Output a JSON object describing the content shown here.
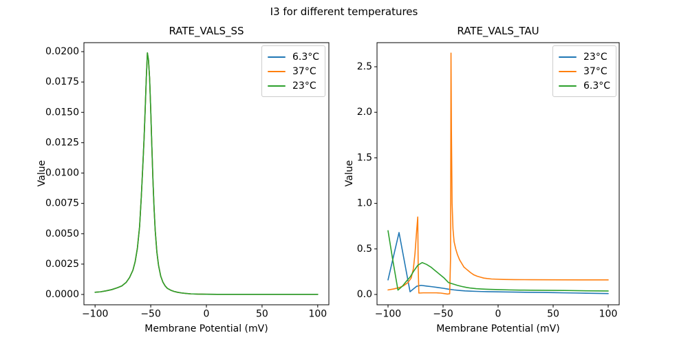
{
  "figure": {
    "suptitle": "I3 for different temperatures"
  },
  "colors": {
    "blue": "#1f77b4",
    "orange": "#ff7f0e",
    "green": "#2ca02c",
    "axis": "#000000",
    "legend_border": "#cccccc"
  },
  "chart_data": [
    {
      "type": "line",
      "title": "RATE_VALS_SS",
      "xlabel": "Membrane Potential (mV)",
      "ylabel": "Value",
      "xlim": [
        -110,
        110
      ],
      "ylim": [
        -0.00085,
        0.02074
      ],
      "xticks": [
        -100,
        -50,
        0,
        50,
        100
      ],
      "xtick_labels": [
        "−100",
        "−50",
        "0",
        "50",
        "100"
      ],
      "yticks": [
        0.0,
        0.0025,
        0.005,
        0.0075,
        0.01,
        0.0125,
        0.015,
        0.0175,
        0.02
      ],
      "ytick_labels": [
        "0.0000",
        "0.0025",
        "0.0050",
        "0.0075",
        "0.0100",
        "0.0125",
        "0.0150",
        "0.0175",
        "0.0200"
      ],
      "grid": false,
      "legend_position": "upper right",
      "legend": [
        "6.3°C",
        "37°C",
        "23°C"
      ],
      "series": [
        {
          "name": "6.3°C",
          "color": "#1f77b4",
          "x": [
            -100,
            -95,
            -90,
            -85,
            -80,
            -76,
            -72,
            -69,
            -66,
            -64,
            -62,
            -60,
            -58.5,
            -57,
            -56,
            -55,
            -54,
            -53,
            -52,
            -51,
            -50,
            -49,
            -48,
            -47,
            -46,
            -44.5,
            -43,
            -41,
            -39,
            -37,
            -35,
            -32,
            -29,
            -26,
            -22,
            -18,
            -14,
            -8,
            0,
            10,
            25,
            50,
            75,
            100
          ],
          "y": [
            0.00018,
            0.00022,
            0.0003,
            0.0004,
            0.00055,
            0.0007,
            0.001,
            0.0014,
            0.002,
            0.0027,
            0.0038,
            0.0056,
            0.008,
            0.0108,
            0.0128,
            0.0152,
            0.0178,
            0.0199,
            0.0193,
            0.0178,
            0.0152,
            0.0122,
            0.0094,
            0.0071,
            0.0053,
            0.0035,
            0.0024,
            0.0015,
            0.001,
            0.0007,
            0.0005,
            0.00035,
            0.00025,
            0.00018,
            0.00012,
            8e-05,
            5e-05,
            3e-05,
            2e-05,
            1e-05,
            1e-05,
            1e-05,
            1e-05,
            1e-05
          ]
        },
        {
          "name": "37°C",
          "color": "#ff7f0e",
          "x": [
            -100,
            -95,
            -90,
            -85,
            -80,
            -76,
            -72,
            -69,
            -66,
            -64,
            -62,
            -60,
            -58.5,
            -57,
            -56,
            -55,
            -54,
            -53,
            -52,
            -51,
            -50,
            -49,
            -48,
            -47,
            -46,
            -44.5,
            -43,
            -41,
            -39,
            -37,
            -35,
            -32,
            -29,
            -26,
            -22,
            -18,
            -14,
            -8,
            0,
            10,
            25,
            50,
            75,
            100
          ],
          "y": [
            0.00018,
            0.00022,
            0.0003,
            0.0004,
            0.00055,
            0.0007,
            0.001,
            0.0014,
            0.002,
            0.0027,
            0.0038,
            0.0056,
            0.008,
            0.0108,
            0.0128,
            0.0152,
            0.0178,
            0.0199,
            0.0193,
            0.0178,
            0.0152,
            0.0122,
            0.0094,
            0.0071,
            0.0053,
            0.0035,
            0.0024,
            0.0015,
            0.001,
            0.0007,
            0.0005,
            0.00035,
            0.00025,
            0.00018,
            0.00012,
            8e-05,
            5e-05,
            3e-05,
            2e-05,
            1e-05,
            1e-05,
            1e-05,
            1e-05,
            1e-05
          ]
        },
        {
          "name": "23°C",
          "color": "#2ca02c",
          "x": [
            -100,
            -95,
            -90,
            -85,
            -80,
            -76,
            -72,
            -69,
            -66,
            -64,
            -62,
            -60,
            -58.5,
            -57,
            -56,
            -55,
            -54,
            -53,
            -52,
            -51,
            -50,
            -49,
            -48,
            -47,
            -46,
            -44.5,
            -43,
            -41,
            -39,
            -37,
            -35,
            -32,
            -29,
            -26,
            -22,
            -18,
            -14,
            -8,
            0,
            10,
            25,
            50,
            75,
            100
          ],
          "y": [
            0.00018,
            0.00022,
            0.0003,
            0.0004,
            0.00055,
            0.0007,
            0.001,
            0.0014,
            0.002,
            0.0027,
            0.0038,
            0.0056,
            0.008,
            0.0108,
            0.0128,
            0.0152,
            0.0178,
            0.0199,
            0.0193,
            0.0178,
            0.0152,
            0.0122,
            0.0094,
            0.0071,
            0.0053,
            0.0035,
            0.0024,
            0.0015,
            0.001,
            0.0007,
            0.0005,
            0.00035,
            0.00025,
            0.00018,
            0.00012,
            8e-05,
            5e-05,
            3e-05,
            2e-05,
            1e-05,
            1e-05,
            1e-05,
            1e-05,
            1e-05
          ]
        }
      ]
    },
    {
      "type": "line",
      "title": "RATE_VALS_TAU",
      "xlabel": "Membrane Potential (mV)",
      "ylabel": "Value",
      "xlim": [
        -110,
        110
      ],
      "ylim": [
        -0.1133,
        2.7645
      ],
      "xticks": [
        -100,
        -50,
        0,
        50,
        100
      ],
      "xtick_labels": [
        "−100",
        "−50",
        "0",
        "50",
        "100"
      ],
      "yticks": [
        0.0,
        0.5,
        1.0,
        1.5,
        2.0,
        2.5
      ],
      "ytick_labels": [
        "0.0",
        "0.5",
        "1.0",
        "1.5",
        "2.0",
        "2.5"
      ],
      "grid": false,
      "legend_position": "upper right",
      "legend": [
        "23°C",
        "37°C",
        "6.3°C"
      ],
      "series": [
        {
          "name": "23°C",
          "color": "#1f77b4",
          "x": [
            -100,
            -90,
            -80,
            -74,
            -70,
            -65,
            -60,
            -55,
            -50,
            -45,
            -40,
            -35,
            -30,
            -25,
            -20,
            -15,
            -10,
            -5,
            0,
            10,
            20,
            30,
            40,
            50,
            60,
            70,
            80,
            90,
            100
          ],
          "y": [
            0.16,
            0.68,
            0.03,
            0.09,
            0.1,
            0.092,
            0.085,
            0.077,
            0.068,
            0.058,
            0.05,
            0.044,
            0.039,
            0.036,
            0.034,
            0.032,
            0.031,
            0.03,
            0.029,
            0.027,
            0.025,
            0.023,
            0.022,
            0.02,
            0.018,
            0.016,
            0.014,
            0.012,
            0.01
          ]
        },
        {
          "name": "37°C",
          "color": "#ff7f0e",
          "x": [
            -100,
            -95,
            -90,
            -86,
            -82,
            -79,
            -77,
            -75.5,
            -74,
            -73,
            -72.6,
            -72,
            -68,
            -64,
            -60,
            -56,
            -52,
            -48,
            -46,
            -44,
            -43.2,
            -42.8,
            -42.4,
            -41.8,
            -41,
            -40,
            -38.5,
            -37,
            -35,
            -33,
            -31,
            -29,
            -27,
            -25,
            -22,
            -19,
            -16,
            -13,
            -10,
            -6,
            -2,
            5,
            15,
            30,
            50,
            75,
            100
          ],
          "y": [
            0.05,
            0.06,
            0.075,
            0.095,
            0.13,
            0.18,
            0.28,
            0.45,
            0.7,
            0.85,
            0.3,
            0.015,
            0.018,
            0.018,
            0.018,
            0.018,
            0.015,
            0.008,
            0.004,
            0.008,
            0.4,
            2.65,
            1.8,
            1.0,
            0.72,
            0.58,
            0.5,
            0.44,
            0.38,
            0.34,
            0.3,
            0.28,
            0.26,
            0.24,
            0.215,
            0.2,
            0.19,
            0.18,
            0.175,
            0.17,
            0.168,
            0.165,
            0.163,
            0.162,
            0.161,
            0.16,
            0.16
          ]
        },
        {
          "name": "6.3°C",
          "color": "#2ca02c",
          "x": [
            -100,
            -96,
            -91,
            -87,
            -83,
            -80,
            -77,
            -73,
            -69,
            -65,
            -61,
            -57,
            -53,
            -49,
            -45,
            -41,
            -37,
            -33,
            -29,
            -25,
            -20,
            -15,
            -10,
            -5,
            0,
            10,
            20,
            30,
            40,
            50,
            60,
            70,
            80,
            90,
            100
          ],
          "y": [
            0.7,
            0.4,
            0.048,
            0.09,
            0.15,
            0.19,
            0.25,
            0.32,
            0.35,
            0.33,
            0.3,
            0.26,
            0.22,
            0.18,
            0.13,
            0.115,
            0.1,
            0.088,
            0.078,
            0.07,
            0.064,
            0.06,
            0.057,
            0.055,
            0.053,
            0.05,
            0.048,
            0.047,
            0.046,
            0.045,
            0.044,
            0.042,
            0.04,
            0.039,
            0.038
          ]
        }
      ]
    }
  ]
}
